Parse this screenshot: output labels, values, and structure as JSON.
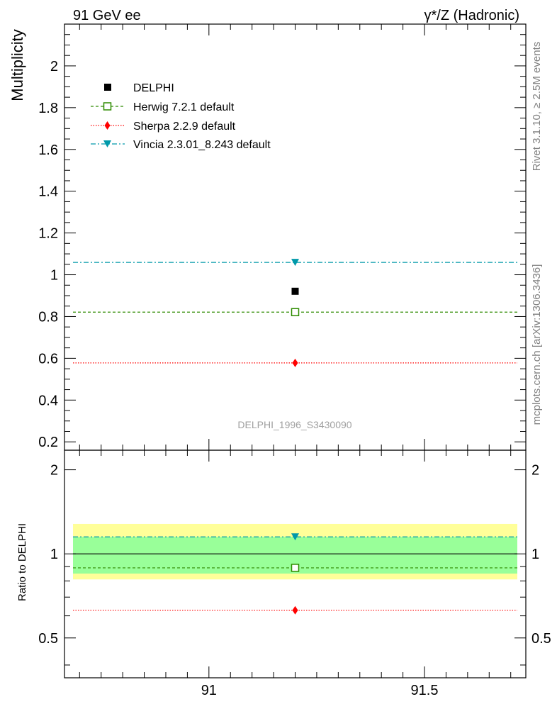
{
  "header": {
    "left": "91 GeV ee",
    "right": "γ*/Z (Hadronic)"
  },
  "side_labels": {
    "rivet": "Rivet 3.1.10, ≥ 2.5M events",
    "mcplots": "mcplots.cern.ch [arXiv:1306.3436]"
  },
  "analysis_id": "DELPHI_1996_S3430090",
  "colors": {
    "data": "#000000",
    "herwig": "#2e8b00",
    "sherpa": "#ff0000",
    "vincia": "#0099aa",
    "band_inner": "#99ff99",
    "band_outer": "#ffff99"
  },
  "chart_data": [
    {
      "type": "scatter",
      "panel": "main",
      "ylabel": "Multiplicity",
      "xlim": [
        90.665,
        91.735
      ],
      "ylim": [
        0.16,
        2.2
      ],
      "y_ticks": [
        "0.2",
        "0.4",
        "0.6",
        "0.8",
        "1",
        "1.2",
        "1.4",
        "1.6",
        "1.8",
        "2"
      ],
      "legend_position": "top-left",
      "series": [
        {
          "name": "DELPHI",
          "style": "data-point",
          "x": [
            91.2
          ],
          "y": [
            0.921
          ]
        },
        {
          "name": "Herwig 7.2.1 default",
          "style": "dashed-open-square",
          "x": [
            91.2
          ],
          "y": [
            0.821
          ]
        },
        {
          "name": "Sherpa 2.2.9 default",
          "style": "dotted-diamond",
          "x": [
            91.2
          ],
          "y": [
            0.578
          ]
        },
        {
          "name": "Vincia 2.3.01_8.243 default",
          "style": "dashdot-down-triangle",
          "x": [
            91.2
          ],
          "y": [
            1.059
          ]
        }
      ]
    },
    {
      "type": "scatter",
      "panel": "ratio",
      "ylabel": "Ratio to DELPHI",
      "xlim": [
        90.665,
        91.735
      ],
      "ylim": [
        0.36,
        2.35
      ],
      "x_ticks": [
        "91",
        "91.5"
      ],
      "y_ticks": [
        "0.5",
        "1",
        "2"
      ],
      "band_inner": [
        0.85,
        1.15
      ],
      "band_outer": [
        0.81,
        1.28
      ],
      "series": [
        {
          "name": "Herwig 7.2.1 default",
          "x": [
            91.2
          ],
          "y": [
            0.891
          ]
        },
        {
          "name": "Sherpa 2.2.9 default",
          "x": [
            91.2
          ],
          "y": [
            0.628
          ]
        },
        {
          "name": "Vincia 2.3.01_8.243 default",
          "x": [
            91.2
          ],
          "y": [
            1.15
          ]
        }
      ]
    }
  ]
}
